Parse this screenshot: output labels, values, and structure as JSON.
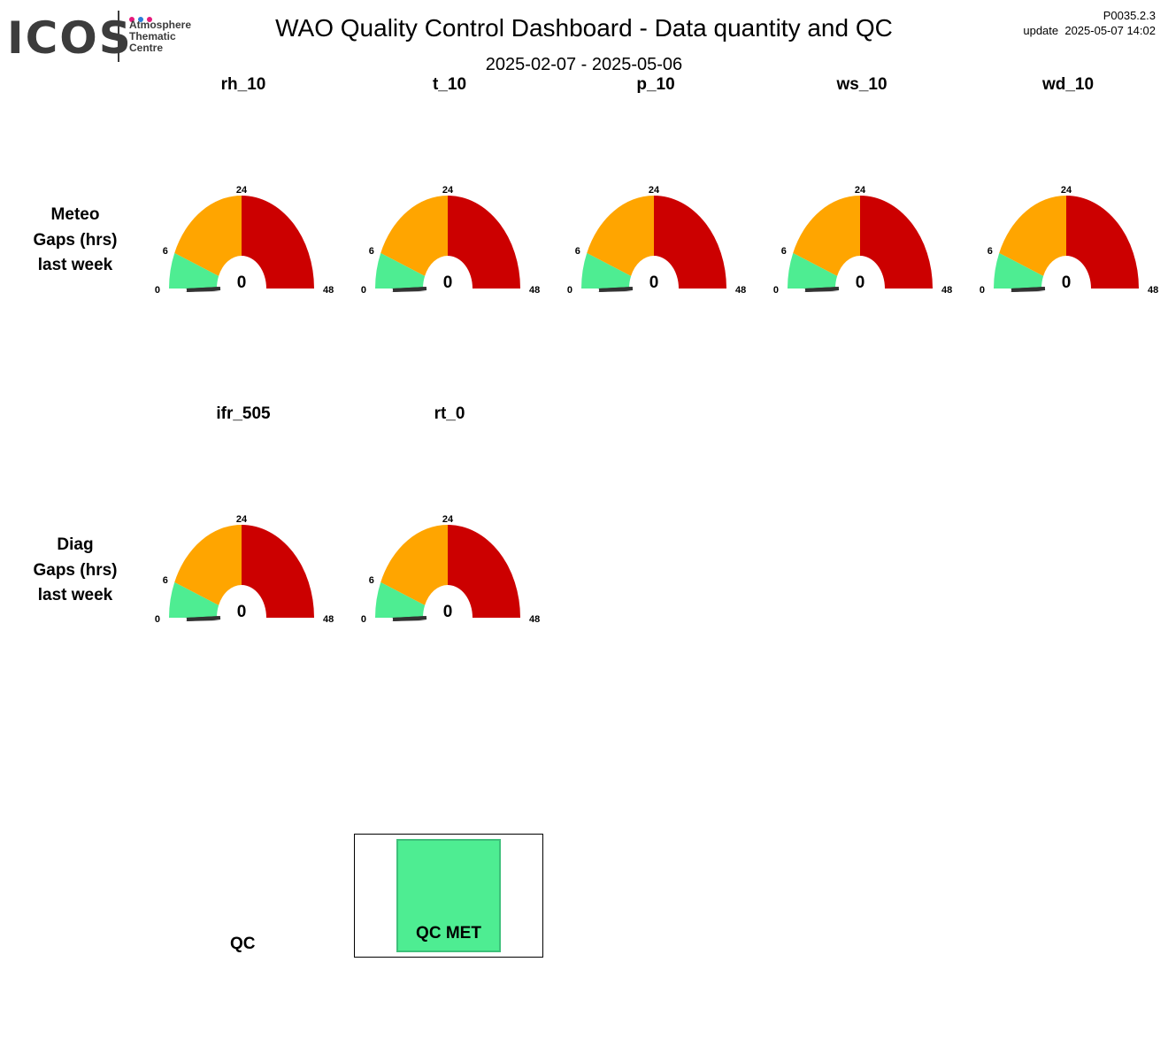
{
  "logo": {
    "word": "ICOS",
    "subtitle": "Atmosphere\nThematic\nCentre",
    "dot_colors": [
      "#e5197b",
      "#2a7dd8",
      "#e5197b"
    ]
  },
  "header": {
    "title": "WAO  Quality Control Dashboard - Data quantity and QC",
    "date_range": "2025-02-07 - 2025-05-06",
    "version": "P0035.2.3",
    "update": "update  2025-05-07 14:02"
  },
  "rows": [
    {
      "label_lines": [
        "Meteo",
        "Gaps (hrs)",
        "last week"
      ]
    },
    {
      "label_lines": [
        "Diag",
        "Gaps (hrs)",
        "last week"
      ]
    }
  ],
  "colors": {
    "green": "#4eed92",
    "orange": "#ffa500",
    "red": "#cc0000",
    "needle": "#333333"
  },
  "chart_data": {
    "type": "gauge",
    "range": [
      0,
      48
    ],
    "bands": [
      {
        "from": 0,
        "to": 6,
        "color": "#4eed92"
      },
      {
        "from": 6,
        "to": 24,
        "color": "#ffa500"
      },
      {
        "from": 24,
        "to": 48,
        "color": "#cc0000"
      }
    ],
    "tick_labels": [
      "0",
      "6",
      "24",
      "48"
    ],
    "gauges": [
      {
        "name": "rh_10",
        "value": 0,
        "row": 0
      },
      {
        "name": "t_10",
        "value": 0,
        "row": 0
      },
      {
        "name": "p_10",
        "value": 0,
        "row": 0
      },
      {
        "name": "ws_10",
        "value": 0,
        "row": 0
      },
      {
        "name": "wd_10",
        "value": 0,
        "row": 0
      },
      {
        "name": "ifr_505",
        "value": 0,
        "row": 1
      },
      {
        "name": "rt_0",
        "value": 0,
        "row": 1
      }
    ]
  },
  "qc": {
    "label": "QC",
    "box_label": "QC MET",
    "box_color": "#4eed92"
  }
}
